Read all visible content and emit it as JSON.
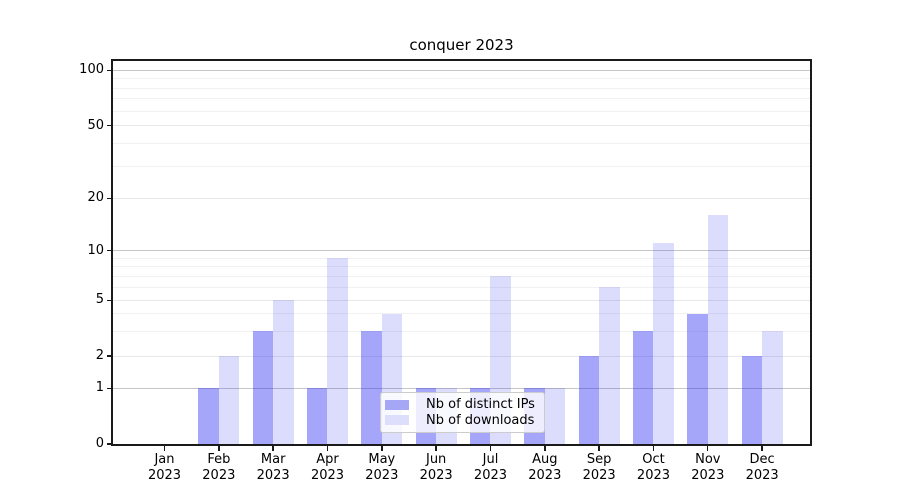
{
  "title": "conquer 2023",
  "chart_data": {
    "type": "bar",
    "title": "conquer 2023",
    "months": [
      "Jan",
      "Feb",
      "Mar",
      "Apr",
      "May",
      "Jun",
      "Jul",
      "Aug",
      "Sep",
      "Oct",
      "Nov",
      "Dec"
    ],
    "year_label": "2023",
    "series": [
      {
        "name": "Nb of distinct IPs",
        "color_hex": "#a6a6f7",
        "color_rgba": "rgba(40,40,240,0.42)",
        "values": [
          0,
          1,
          3,
          1,
          3,
          1,
          1,
          1,
          2,
          3,
          4,
          2
        ]
      },
      {
        "name": "Nb of downloads",
        "color_hex": "#ddddfc",
        "color_rgba": "rgba(40,40,240,0.16)",
        "values": [
          0,
          2,
          5,
          9,
          4,
          1,
          7,
          1,
          6,
          11,
          16,
          3
        ]
      }
    ],
    "y_ticks": [
      0,
      1,
      2,
      5,
      10,
      20,
      50,
      100
    ],
    "y_minor_ticks": [
      3,
      4,
      6,
      7,
      8,
      9,
      30,
      40,
      60,
      70,
      80,
      90
    ],
    "ylim": [
      0,
      115
    ],
    "yscale": "log-like (linear below 1)",
    "grid": true,
    "legend_location": "lower center",
    "xlabel": "",
    "ylabel": ""
  }
}
